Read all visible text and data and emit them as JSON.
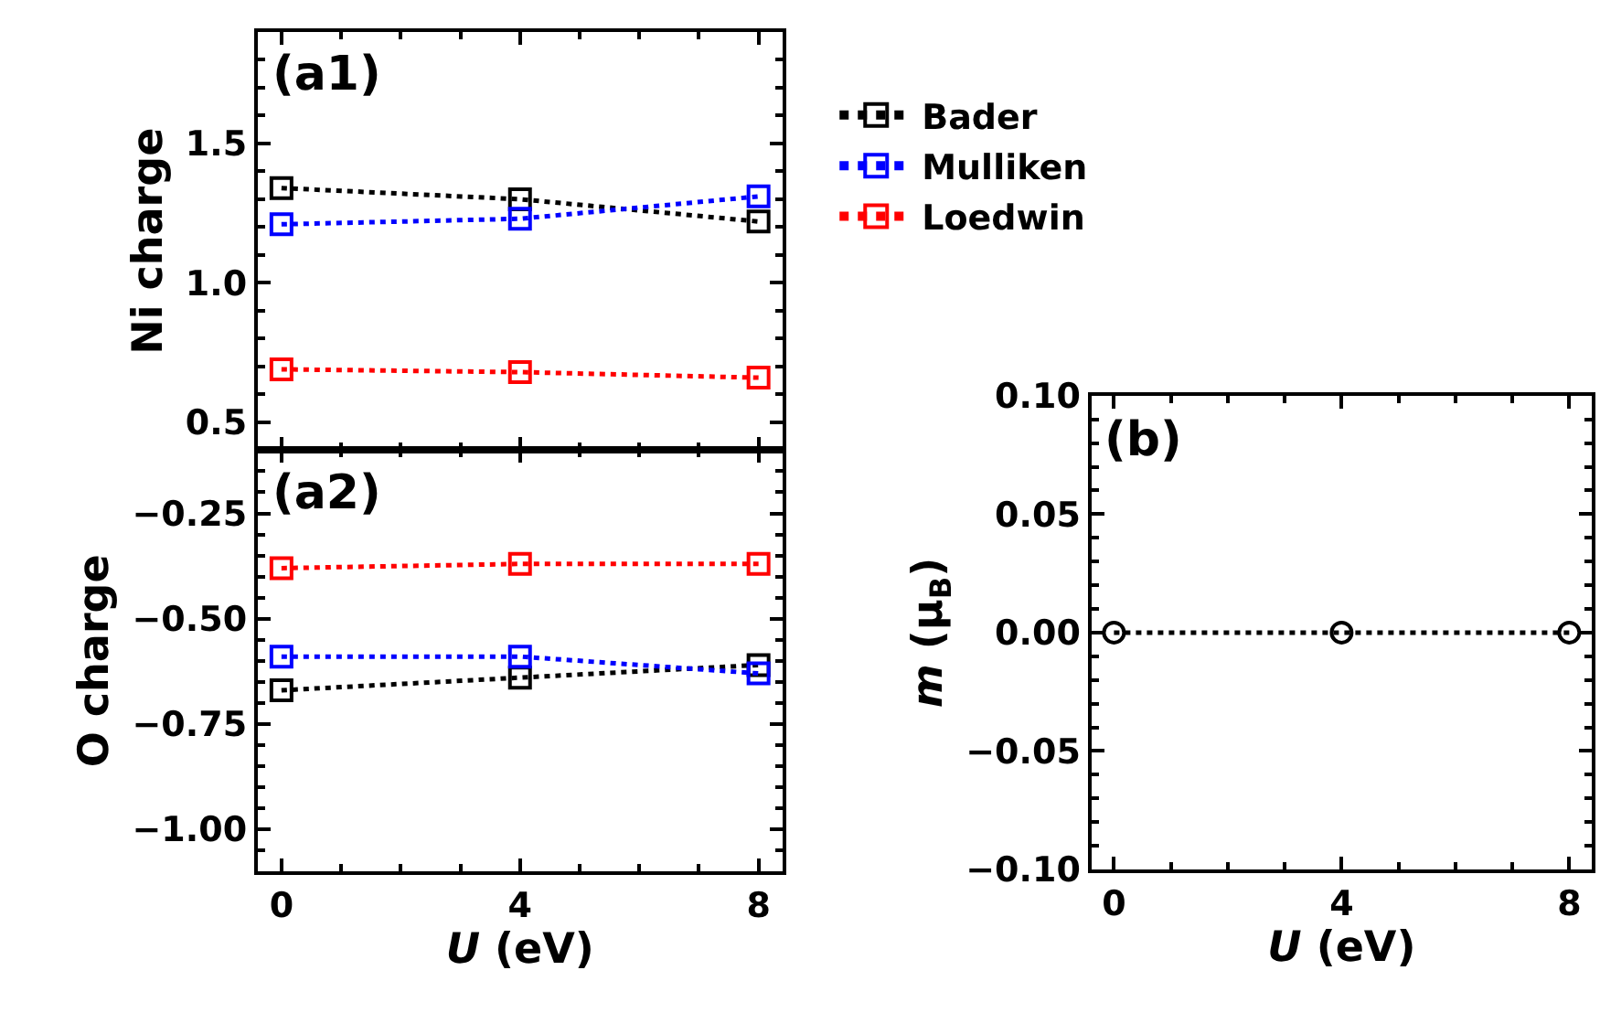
{
  "chart_data": [
    {
      "type": "line",
      "ylabel": "Ni charge",
      "annotations": [
        "(a1)"
      ],
      "x": [
        0,
        4,
        8
      ],
      "xlim": [
        -0.4,
        8.4
      ],
      "xticks": [
        0,
        4,
        8
      ],
      "ylim": [
        0.4,
        1.9
      ],
      "yticks": [
        0.5,
        {
          "value": 1,
          "label": "1.0"
        },
        1.5
      ],
      "tick_labels": "y",
      "marker": "square",
      "line_style": "dotted",
      "legend": "right",
      "series": [
        {
          "name": "Bader",
          "color": "#000000",
          "values": [
            1.34,
            1.3,
            1.22
          ]
        },
        {
          "name": "Mulliken",
          "color": "#0000ff",
          "values": [
            1.21,
            1.23,
            1.31
          ]
        },
        {
          "name": "Loedwin",
          "color": "#ff0000",
          "values": [
            0.69,
            0.68,
            0.66
          ]
        }
      ]
    },
    {
      "type": "line",
      "ylabel": "O charge",
      "xlabel": "U (eV)",
      "annotations": [
        "(a2)"
      ],
      "x": [
        0,
        4,
        8
      ],
      "xlim": [
        -0.4,
        8.4
      ],
      "xticks": [
        0,
        4,
        8
      ],
      "ylim": [
        -1.1,
        -0.1
      ],
      "yticks": [
        {
          "value": -1,
          "label": "−1.00"
        },
        -0.75,
        {
          "value": -0.5,
          "label": "−0.50"
        },
        -0.25
      ],
      "marker": "square",
      "line_style": "dotted",
      "series": [
        {
          "color": "#000000",
          "values": [
            -0.67,
            -0.64,
            -0.61
          ]
        },
        {
          "color": "#0000ff",
          "values": [
            -0.59,
            -0.59,
            -0.63
          ]
        },
        {
          "color": "#ff0000",
          "values": [
            -0.38,
            -0.37,
            -0.37
          ]
        }
      ]
    },
    {
      "type": "line",
      "ylabel": "m (μ$_{B}$)",
      "xlabel": "U (eV)",
      "annotations": [
        "(b)"
      ],
      "x": [
        0,
        4,
        8
      ],
      "xlim": [
        -0.4,
        8.4
      ],
      "xticks": [
        0,
        4,
        8
      ],
      "ylim": [
        -0.1,
        0.1
      ],
      "yticks": [
        {
          "value": -0.1,
          "label": "−0.10"
        },
        -0.05,
        {
          "value": 0,
          "label": "0.00"
        },
        0.05,
        {
          "value": 0.1,
          "label": "0.10"
        }
      ],
      "marker": "circle",
      "line_style": "dotted",
      "series": [
        {
          "color": "#000000",
          "values": [
            0,
            0,
            0
          ]
        }
      ]
    }
  ]
}
